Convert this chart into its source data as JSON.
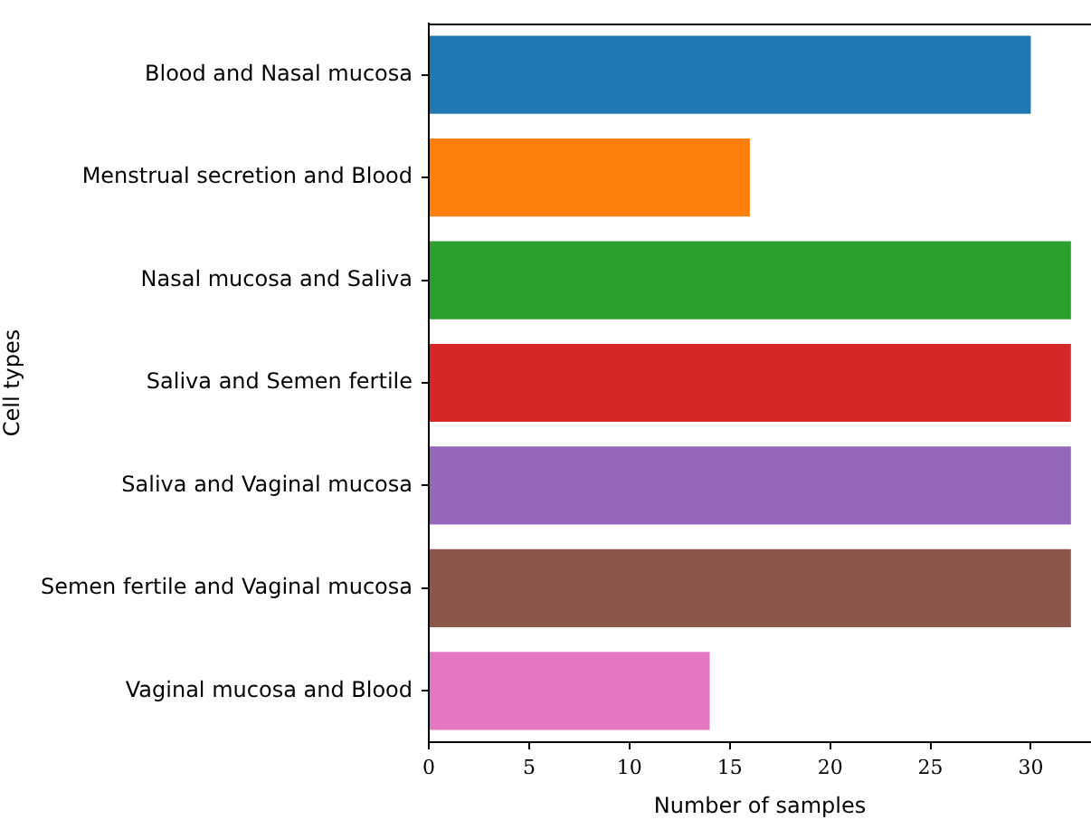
{
  "chart_data": {
    "type": "bar",
    "orientation": "horizontal",
    "xlabel": "Number of samples",
    "ylabel": "Cell types",
    "categories": [
      "Blood and Nasal mucosa",
      "Menstrual secretion and Blood",
      "Nasal mucosa and Saliva",
      "Saliva and Semen fertile",
      "Saliva and Vaginal mucosa",
      "Semen fertile and Vaginal mucosa",
      "Vaginal mucosa and Blood"
    ],
    "values": [
      30,
      16,
      32,
      32,
      32,
      32,
      14
    ],
    "colors": [
      "#1f77b4",
      "#ff7f0e",
      "#2ca02c",
      "#d62728",
      "#9467bd",
      "#8c564b",
      "#e377c2"
    ],
    "xlim": [
      0,
      33
    ],
    "xticks": [
      0,
      5,
      10,
      15,
      20,
      25,
      30
    ],
    "grid": false,
    "legend": false
  }
}
